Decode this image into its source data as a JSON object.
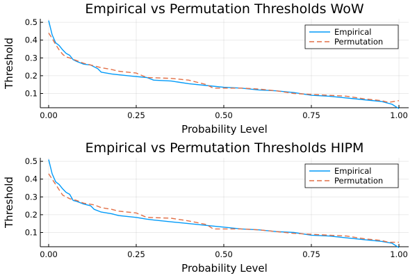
{
  "chart_data": [
    {
      "type": "line",
      "title": "Empirical vs Permutation Thresholds WoW",
      "xlabel": "Probability Level",
      "ylabel": "Threshold",
      "xlim": [
        0,
        1
      ],
      "ylim": [
        0.02,
        0.52
      ],
      "x_ticks": [
        0,
        0.25,
        0.5,
        0.75,
        1
      ],
      "x_tick_labels": [
        "0.00",
        "0.25",
        "0.50",
        "0.75",
        "1.00"
      ],
      "y_ticks": [
        0.1,
        0.2,
        0.3,
        0.4,
        0.5
      ],
      "y_tick_labels": [
        "0.1",
        "0.2",
        "0.3",
        "0.4",
        "0.5"
      ],
      "grid": true,
      "legend_position": "top-right",
      "series": [
        {
          "name": "Empirical",
          "color": "#009af9",
          "style": "solid",
          "points": [
            [
              0.0,
              0.51
            ],
            [
              0.01,
              0.43
            ],
            [
              0.02,
              0.385
            ],
            [
              0.03,
              0.37
            ],
            [
              0.04,
              0.345
            ],
            [
              0.05,
              0.325
            ],
            [
              0.06,
              0.315
            ],
            [
              0.07,
              0.29
            ],
            [
              0.08,
              0.28
            ],
            [
              0.1,
              0.265
            ],
            [
              0.12,
              0.26
            ],
            [
              0.14,
              0.24
            ],
            [
              0.15,
              0.22
            ],
            [
              0.18,
              0.21
            ],
            [
              0.2,
              0.205
            ],
            [
              0.25,
              0.195
            ],
            [
              0.28,
              0.19
            ],
            [
              0.3,
              0.175
            ],
            [
              0.35,
              0.17
            ],
            [
              0.4,
              0.155
            ],
            [
              0.45,
              0.145
            ],
            [
              0.5,
              0.135
            ],
            [
              0.55,
              0.13
            ],
            [
              0.6,
              0.12
            ],
            [
              0.65,
              0.115
            ],
            [
              0.7,
              0.105
            ],
            [
              0.75,
              0.09
            ],
            [
              0.8,
              0.085
            ],
            [
              0.85,
              0.075
            ],
            [
              0.9,
              0.065
            ],
            [
              0.95,
              0.055
            ],
            [
              0.98,
              0.04
            ],
            [
              1.0,
              0.015
            ]
          ]
        },
        {
          "name": "Permutation",
          "color": "#e26f46",
          "style": "dashed",
          "points": [
            [
              0.0,
              0.44
            ],
            [
              0.01,
              0.41
            ],
            [
              0.02,
              0.375
            ],
            [
              0.03,
              0.345
            ],
            [
              0.04,
              0.32
            ],
            [
              0.05,
              0.305
            ],
            [
              0.06,
              0.3
            ],
            [
              0.08,
              0.285
            ],
            [
              0.1,
              0.27
            ],
            [
              0.13,
              0.255
            ],
            [
              0.15,
              0.245
            ],
            [
              0.18,
              0.235
            ],
            [
              0.2,
              0.225
            ],
            [
              0.25,
              0.215
            ],
            [
              0.28,
              0.19
            ],
            [
              0.35,
              0.185
            ],
            [
              0.4,
              0.175
            ],
            [
              0.45,
              0.15
            ],
            [
              0.47,
              0.13
            ],
            [
              0.55,
              0.13
            ],
            [
              0.6,
              0.125
            ],
            [
              0.65,
              0.115
            ],
            [
              0.7,
              0.1
            ],
            [
              0.75,
              0.095
            ],
            [
              0.8,
              0.09
            ],
            [
              0.85,
              0.085
            ],
            [
              0.9,
              0.07
            ],
            [
              0.95,
              0.06
            ],
            [
              0.97,
              0.05
            ],
            [
              1.0,
              0.06
            ]
          ]
        }
      ]
    },
    {
      "type": "line",
      "title": "Empirical vs Permutation Thresholds HIPM",
      "xlabel": "Probability Level",
      "ylabel": "Threshold",
      "xlim": [
        0,
        1
      ],
      "ylim": [
        0.02,
        0.52
      ],
      "x_ticks": [
        0,
        0.25,
        0.5,
        0.75,
        1
      ],
      "x_tick_labels": [
        "0.00",
        "0.25",
        "0.50",
        "0.75",
        "1.00"
      ],
      "y_ticks": [
        0.1,
        0.2,
        0.3,
        0.4,
        0.5
      ],
      "y_tick_labels": [
        "0.1",
        "0.2",
        "0.3",
        "0.4",
        "0.5"
      ],
      "grid": true,
      "legend_position": "top-right",
      "series": [
        {
          "name": "Empirical",
          "color": "#009af9",
          "style": "solid",
          "points": [
            [
              0.0,
              0.51
            ],
            [
              0.01,
              0.43
            ],
            [
              0.02,
              0.385
            ],
            [
              0.03,
              0.37
            ],
            [
              0.04,
              0.345
            ],
            [
              0.05,
              0.325
            ],
            [
              0.06,
              0.315
            ],
            [
              0.07,
              0.28
            ],
            [
              0.08,
              0.275
            ],
            [
              0.1,
              0.26
            ],
            [
              0.12,
              0.25
            ],
            [
              0.13,
              0.23
            ],
            [
              0.15,
              0.215
            ],
            [
              0.18,
              0.205
            ],
            [
              0.2,
              0.195
            ],
            [
              0.25,
              0.185
            ],
            [
              0.28,
              0.175
            ],
            [
              0.3,
              0.17
            ],
            [
              0.35,
              0.16
            ],
            [
              0.4,
              0.15
            ],
            [
              0.45,
              0.14
            ],
            [
              0.5,
              0.13
            ],
            [
              0.55,
              0.12
            ],
            [
              0.6,
              0.115
            ],
            [
              0.65,
              0.105
            ],
            [
              0.7,
              0.1
            ],
            [
              0.75,
              0.085
            ],
            [
              0.8,
              0.08
            ],
            [
              0.85,
              0.07
            ],
            [
              0.9,
              0.06
            ],
            [
              0.95,
              0.05
            ],
            [
              0.98,
              0.04
            ],
            [
              1.0,
              0.015
            ]
          ]
        },
        {
          "name": "Permutation",
          "color": "#e26f46",
          "style": "dashed",
          "points": [
            [
              0.0,
              0.43
            ],
            [
              0.01,
              0.4
            ],
            [
              0.02,
              0.37
            ],
            [
              0.03,
              0.34
            ],
            [
              0.04,
              0.31
            ],
            [
              0.05,
              0.3
            ],
            [
              0.06,
              0.29
            ],
            [
              0.08,
              0.28
            ],
            [
              0.1,
              0.265
            ],
            [
              0.13,
              0.255
            ],
            [
              0.15,
              0.24
            ],
            [
              0.18,
              0.23
            ],
            [
              0.2,
              0.22
            ],
            [
              0.25,
              0.21
            ],
            [
              0.28,
              0.185
            ],
            [
              0.35,
              0.18
            ],
            [
              0.4,
              0.165
            ],
            [
              0.45,
              0.145
            ],
            [
              0.47,
              0.12
            ],
            [
              0.55,
              0.12
            ],
            [
              0.6,
              0.115
            ],
            [
              0.65,
              0.105
            ],
            [
              0.7,
              0.095
            ],
            [
              0.75,
              0.09
            ],
            [
              0.8,
              0.085
            ],
            [
              0.85,
              0.08
            ],
            [
              0.9,
              0.065
            ],
            [
              0.95,
              0.055
            ],
            [
              0.97,
              0.045
            ],
            [
              1.0,
              0.045
            ]
          ]
        }
      ]
    }
  ]
}
